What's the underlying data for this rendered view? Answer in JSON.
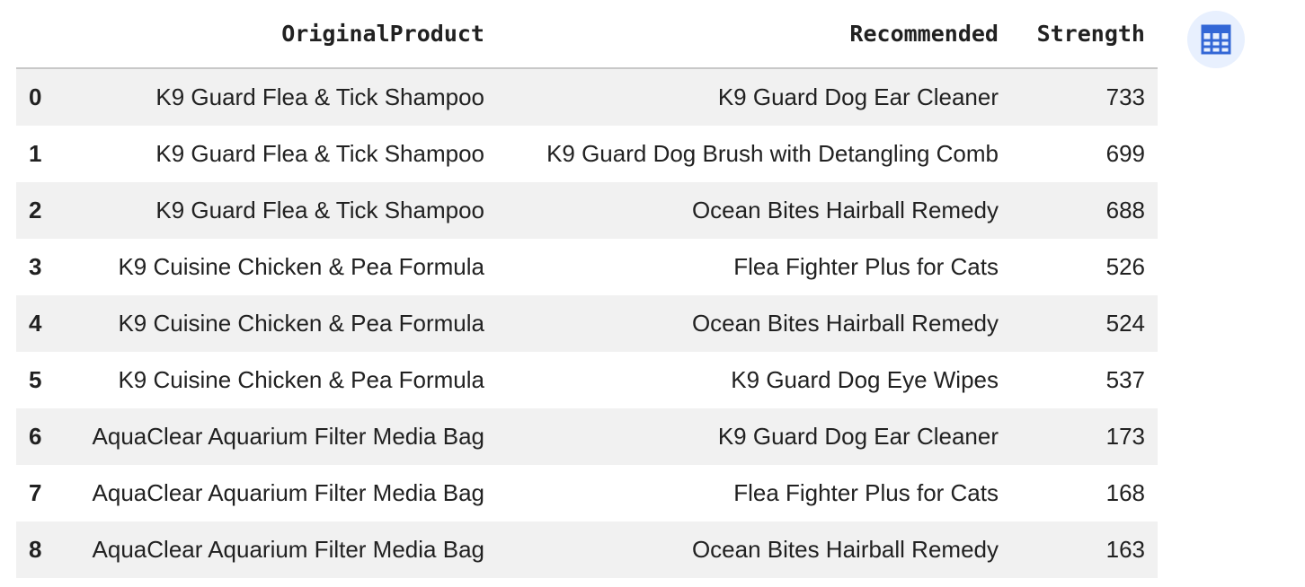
{
  "table": {
    "columns": [
      "",
      "OriginalProduct",
      "Recommended",
      "Strength"
    ],
    "rows": [
      {
        "index": "0",
        "original": "K9 Guard Flea & Tick Shampoo",
        "recommended": "K9 Guard Dog Ear Cleaner",
        "strength": "733"
      },
      {
        "index": "1",
        "original": "K9 Guard Flea & Tick Shampoo",
        "recommended": "K9 Guard Dog Brush with Detangling Comb",
        "strength": "699"
      },
      {
        "index": "2",
        "original": "K9 Guard Flea & Tick Shampoo",
        "recommended": "Ocean Bites Hairball Remedy",
        "strength": "688"
      },
      {
        "index": "3",
        "original": "K9 Cuisine Chicken & Pea Formula",
        "recommended": "Flea Fighter Plus for Cats",
        "strength": "526"
      },
      {
        "index": "4",
        "original": "K9 Cuisine Chicken & Pea Formula",
        "recommended": "Ocean Bites Hairball Remedy",
        "strength": "524"
      },
      {
        "index": "5",
        "original": "K9 Cuisine Chicken & Pea Formula",
        "recommended": "K9 Guard Dog Eye Wipes",
        "strength": "537"
      },
      {
        "index": "6",
        "original": "AquaClear Aquarium Filter Media Bag",
        "recommended": "K9 Guard Dog Ear Cleaner",
        "strength": "173"
      },
      {
        "index": "7",
        "original": "AquaClear Aquarium Filter Media Bag",
        "recommended": "Flea Fighter Plus for Cats",
        "strength": "168"
      },
      {
        "index": "8",
        "original": "AquaClear Aquarium Filter Media Bag",
        "recommended": "Ocean Bites Hairball Remedy",
        "strength": "163"
      }
    ]
  },
  "toolbar": {
    "interactive_table_icon": "table-icon",
    "accent": "#3367d6"
  }
}
